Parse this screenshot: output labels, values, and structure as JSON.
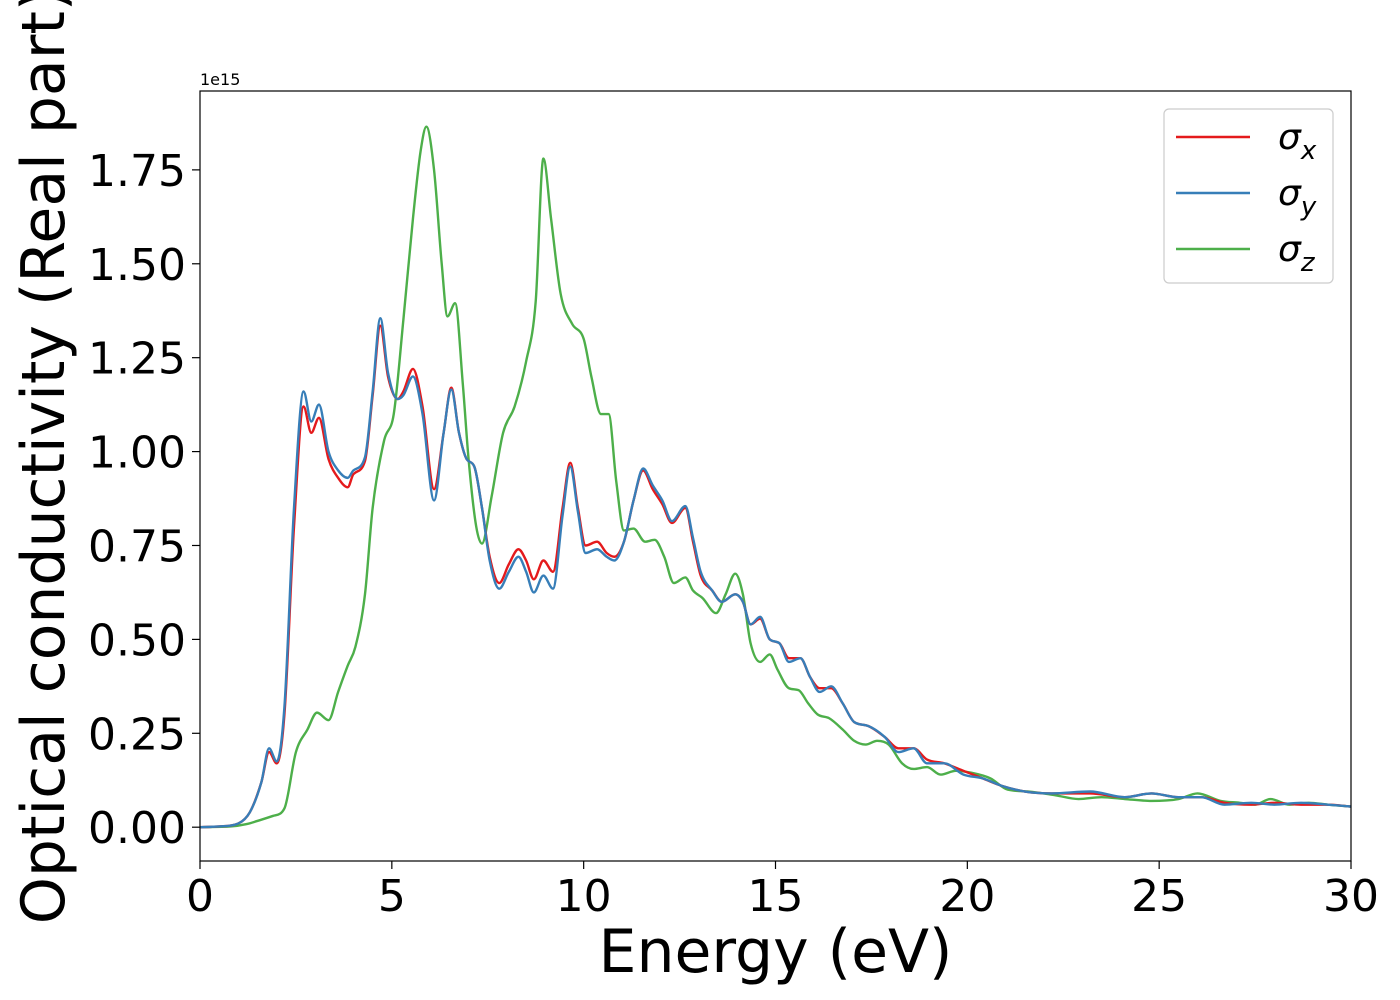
{
  "chart_data": {
    "type": "line",
    "title": "",
    "xlabel": "Energy (eV)",
    "ylabel": "Optical conductivity (Real part)",
    "y_offset_label": "1e15",
    "xlim": [
      0,
      30
    ],
    "ylim": [
      -0.09,
      1.96
    ],
    "grid": false,
    "legend_position": "top-right",
    "x_ticks": [
      0,
      5,
      10,
      15,
      20,
      25,
      30
    ],
    "x_tick_labels": [
      "0",
      "5",
      "10",
      "15",
      "20",
      "25",
      "30"
    ],
    "y_ticks": [
      0.0,
      0.25,
      0.5,
      0.75,
      1.0,
      1.25,
      1.5,
      1.75
    ],
    "y_tick_labels": [
      "0.00",
      "0.25",
      "0.50",
      "0.75",
      "1.00",
      "1.25",
      "1.50",
      "1.75"
    ],
    "series": [
      {
        "name": "σx",
        "legend_base": "σ",
        "legend_sub": "x",
        "color": "#e41a1c",
        "points": [
          [
            0,
            0
          ],
          [
            0.5,
            0.002
          ],
          [
            1,
            0.01
          ],
          [
            1.3,
            0.04
          ],
          [
            1.6,
            0.12
          ],
          [
            1.8,
            0.2
          ],
          [
            2.0,
            0.17
          ],
          [
            2.2,
            0.3
          ],
          [
            2.45,
            0.8
          ],
          [
            2.7,
            1.12
          ],
          [
            2.9,
            1.05
          ],
          [
            3.1,
            1.09
          ],
          [
            3.35,
            0.98
          ],
          [
            3.6,
            0.93
          ],
          [
            3.85,
            0.905
          ],
          [
            4.0,
            0.94
          ],
          [
            4.3,
            0.975
          ],
          [
            4.5,
            1.15
          ],
          [
            4.7,
            1.335
          ],
          [
            4.9,
            1.2
          ],
          [
            5.15,
            1.14
          ],
          [
            5.3,
            1.16
          ],
          [
            5.55,
            1.22
          ],
          [
            5.8,
            1.12
          ],
          [
            6.1,
            0.9
          ],
          [
            6.35,
            1.05
          ],
          [
            6.55,
            1.17
          ],
          [
            6.75,
            1.05
          ],
          [
            6.95,
            0.98
          ],
          [
            7.15,
            0.96
          ],
          [
            7.35,
            0.85
          ],
          [
            7.55,
            0.72
          ],
          [
            7.8,
            0.65
          ],
          [
            8.05,
            0.7
          ],
          [
            8.3,
            0.74
          ],
          [
            8.5,
            0.71
          ],
          [
            8.7,
            0.66
          ],
          [
            8.95,
            0.71
          ],
          [
            9.2,
            0.68
          ],
          [
            9.45,
            0.85
          ],
          [
            9.65,
            0.97
          ],
          [
            9.85,
            0.85
          ],
          [
            10.05,
            0.75
          ],
          [
            10.35,
            0.76
          ],
          [
            10.6,
            0.73
          ],
          [
            10.8,
            0.72
          ],
          [
            11.05,
            0.76
          ],
          [
            11.3,
            0.87
          ],
          [
            11.55,
            0.95
          ],
          [
            11.8,
            0.9
          ],
          [
            12.05,
            0.86
          ],
          [
            12.3,
            0.81
          ],
          [
            12.65,
            0.85
          ],
          [
            12.85,
            0.76
          ],
          [
            13.05,
            0.67
          ],
          [
            13.35,
            0.63
          ],
          [
            13.6,
            0.6
          ],
          [
            13.95,
            0.62
          ],
          [
            14.15,
            0.6
          ],
          [
            14.35,
            0.54
          ],
          [
            14.6,
            0.555
          ],
          [
            14.85,
            0.5
          ],
          [
            15.1,
            0.49
          ],
          [
            15.35,
            0.45
          ],
          [
            15.65,
            0.45
          ],
          [
            15.9,
            0.4
          ],
          [
            16.15,
            0.37
          ],
          [
            16.45,
            0.37
          ],
          [
            16.75,
            0.33
          ],
          [
            17.05,
            0.28
          ],
          [
            17.4,
            0.27
          ],
          [
            17.85,
            0.24
          ],
          [
            18.2,
            0.21
          ],
          [
            18.6,
            0.21
          ],
          [
            18.95,
            0.18
          ],
          [
            19.4,
            0.17
          ],
          [
            19.9,
            0.15
          ],
          [
            20.4,
            0.13
          ],
          [
            20.9,
            0.11
          ],
          [
            21.5,
            0.095
          ],
          [
            22.2,
            0.09
          ],
          [
            23.2,
            0.09
          ],
          [
            24.1,
            0.08
          ],
          [
            24.8,
            0.09
          ],
          [
            25.5,
            0.08
          ],
          [
            26.1,
            0.08
          ],
          [
            26.7,
            0.065
          ],
          [
            27.4,
            0.06
          ],
          [
            28,
            0.065
          ],
          [
            28.7,
            0.06
          ],
          [
            29.4,
            0.06
          ],
          [
            30,
            0.055
          ]
        ]
      },
      {
        "name": "σy",
        "legend_base": "σ",
        "legend_sub": "y",
        "color": "#377eb8",
        "points": [
          [
            0,
            0
          ],
          [
            0.5,
            0.002
          ],
          [
            1,
            0.01
          ],
          [
            1.3,
            0.04
          ],
          [
            1.6,
            0.12
          ],
          [
            1.8,
            0.21
          ],
          [
            2.0,
            0.175
          ],
          [
            2.2,
            0.32
          ],
          [
            2.45,
            0.85
          ],
          [
            2.7,
            1.16
          ],
          [
            2.9,
            1.08
          ],
          [
            3.1,
            1.125
          ],
          [
            3.35,
            1.0
          ],
          [
            3.6,
            0.95
          ],
          [
            3.85,
            0.93
          ],
          [
            4.0,
            0.95
          ],
          [
            4.3,
            0.985
          ],
          [
            4.5,
            1.16
          ],
          [
            4.7,
            1.355
          ],
          [
            4.9,
            1.21
          ],
          [
            5.15,
            1.14
          ],
          [
            5.3,
            1.15
          ],
          [
            5.55,
            1.2
          ],
          [
            5.8,
            1.1
          ],
          [
            6.1,
            0.87
          ],
          [
            6.35,
            1.05
          ],
          [
            6.55,
            1.165
          ],
          [
            6.75,
            1.05
          ],
          [
            6.95,
            0.98
          ],
          [
            7.15,
            0.96
          ],
          [
            7.35,
            0.85
          ],
          [
            7.55,
            0.71
          ],
          [
            7.8,
            0.635
          ],
          [
            8.05,
            0.68
          ],
          [
            8.3,
            0.72
          ],
          [
            8.5,
            0.68
          ],
          [
            8.7,
            0.625
          ],
          [
            8.95,
            0.67
          ],
          [
            9.2,
            0.635
          ],
          [
            9.45,
            0.83
          ],
          [
            9.65,
            0.96
          ],
          [
            9.85,
            0.84
          ],
          [
            10.05,
            0.73
          ],
          [
            10.35,
            0.74
          ],
          [
            10.6,
            0.72
          ],
          [
            10.8,
            0.71
          ],
          [
            11.05,
            0.76
          ],
          [
            11.3,
            0.87
          ],
          [
            11.55,
            0.955
          ],
          [
            11.8,
            0.91
          ],
          [
            12.05,
            0.87
          ],
          [
            12.3,
            0.815
          ],
          [
            12.65,
            0.855
          ],
          [
            12.85,
            0.77
          ],
          [
            13.05,
            0.68
          ],
          [
            13.35,
            0.63
          ],
          [
            13.6,
            0.6
          ],
          [
            13.95,
            0.62
          ],
          [
            14.15,
            0.6
          ],
          [
            14.35,
            0.54
          ],
          [
            14.6,
            0.56
          ],
          [
            14.85,
            0.5
          ],
          [
            15.1,
            0.49
          ],
          [
            15.35,
            0.44
          ],
          [
            15.65,
            0.45
          ],
          [
            15.9,
            0.4
          ],
          [
            16.15,
            0.36
          ],
          [
            16.45,
            0.375
          ],
          [
            16.75,
            0.33
          ],
          [
            17.05,
            0.28
          ],
          [
            17.4,
            0.27
          ],
          [
            17.85,
            0.24
          ],
          [
            18.2,
            0.2
          ],
          [
            18.6,
            0.21
          ],
          [
            18.95,
            0.17
          ],
          [
            19.4,
            0.17
          ],
          [
            19.9,
            0.14
          ],
          [
            20.4,
            0.13
          ],
          [
            20.9,
            0.11
          ],
          [
            21.5,
            0.095
          ],
          [
            22.2,
            0.09
          ],
          [
            23.2,
            0.095
          ],
          [
            24.1,
            0.08
          ],
          [
            24.8,
            0.09
          ],
          [
            25.5,
            0.08
          ],
          [
            26.1,
            0.08
          ],
          [
            26.7,
            0.06
          ],
          [
            27.4,
            0.065
          ],
          [
            28,
            0.06
          ],
          [
            28.7,
            0.065
          ],
          [
            29.4,
            0.06
          ],
          [
            30,
            0.055
          ]
        ]
      },
      {
        "name": "σz",
        "legend_base": "σ",
        "legend_sub": "z",
        "color": "#4daf4a",
        "points": [
          [
            0,
            0
          ],
          [
            0.8,
            0.002
          ],
          [
            1.2,
            0.008
          ],
          [
            1.6,
            0.02
          ],
          [
            1.9,
            0.03
          ],
          [
            2.2,
            0.05
          ],
          [
            2.5,
            0.2
          ],
          [
            2.8,
            0.26
          ],
          [
            3.05,
            0.305
          ],
          [
            3.35,
            0.285
          ],
          [
            3.6,
            0.36
          ],
          [
            3.85,
            0.43
          ],
          [
            4.05,
            0.48
          ],
          [
            4.3,
            0.62
          ],
          [
            4.5,
            0.85
          ],
          [
            4.8,
            1.03
          ],
          [
            5.05,
            1.1
          ],
          [
            5.3,
            1.35
          ],
          [
            5.55,
            1.62
          ],
          [
            5.75,
            1.8
          ],
          [
            5.9,
            1.865
          ],
          [
            6.1,
            1.75
          ],
          [
            6.3,
            1.5
          ],
          [
            6.45,
            1.36
          ],
          [
            6.65,
            1.395
          ],
          [
            6.85,
            1.18
          ],
          [
            7.0,
            0.98
          ],
          [
            7.2,
            0.8
          ],
          [
            7.35,
            0.755
          ],
          [
            7.6,
            0.88
          ],
          [
            7.9,
            1.05
          ],
          [
            8.2,
            1.12
          ],
          [
            8.5,
            1.24
          ],
          [
            8.75,
            1.4
          ],
          [
            8.95,
            1.78
          ],
          [
            9.15,
            1.62
          ],
          [
            9.4,
            1.42
          ],
          [
            9.7,
            1.34
          ],
          [
            10.0,
            1.3
          ],
          [
            10.2,
            1.2
          ],
          [
            10.45,
            1.1
          ],
          [
            10.65,
            1.1
          ],
          [
            10.85,
            0.92
          ],
          [
            11.05,
            0.79
          ],
          [
            11.3,
            0.795
          ],
          [
            11.6,
            0.76
          ],
          [
            11.85,
            0.765
          ],
          [
            12.1,
            0.72
          ],
          [
            12.35,
            0.65
          ],
          [
            12.65,
            0.665
          ],
          [
            12.85,
            0.63
          ],
          [
            13.1,
            0.61
          ],
          [
            13.45,
            0.57
          ],
          [
            13.7,
            0.62
          ],
          [
            13.95,
            0.675
          ],
          [
            14.15,
            0.62
          ],
          [
            14.35,
            0.49
          ],
          [
            14.6,
            0.44
          ],
          [
            14.85,
            0.46
          ],
          [
            15.05,
            0.42
          ],
          [
            15.35,
            0.37
          ],
          [
            15.6,
            0.365
          ],
          [
            15.85,
            0.33
          ],
          [
            16.1,
            0.3
          ],
          [
            16.4,
            0.29
          ],
          [
            16.75,
            0.26
          ],
          [
            17.05,
            0.23
          ],
          [
            17.35,
            0.22
          ],
          [
            17.65,
            0.23
          ],
          [
            17.95,
            0.22
          ],
          [
            18.3,
            0.17
          ],
          [
            18.6,
            0.155
          ],
          [
            18.95,
            0.16
          ],
          [
            19.3,
            0.14
          ],
          [
            19.7,
            0.15
          ],
          [
            20.1,
            0.145
          ],
          [
            20.6,
            0.13
          ],
          [
            21.05,
            0.1
          ],
          [
            21.6,
            0.095
          ],
          [
            22.3,
            0.085
          ],
          [
            22.9,
            0.075
          ],
          [
            23.5,
            0.08
          ],
          [
            24.1,
            0.075
          ],
          [
            24.8,
            0.07
          ],
          [
            25.5,
            0.075
          ],
          [
            26.0,
            0.09
          ],
          [
            26.6,
            0.07
          ],
          [
            27.1,
            0.065
          ],
          [
            27.5,
            0.06
          ],
          [
            27.9,
            0.075
          ],
          [
            28.4,
            0.06
          ],
          [
            28.9,
            0.065
          ],
          [
            29.4,
            0.06
          ],
          [
            30,
            0.055
          ]
        ]
      }
    ]
  }
}
